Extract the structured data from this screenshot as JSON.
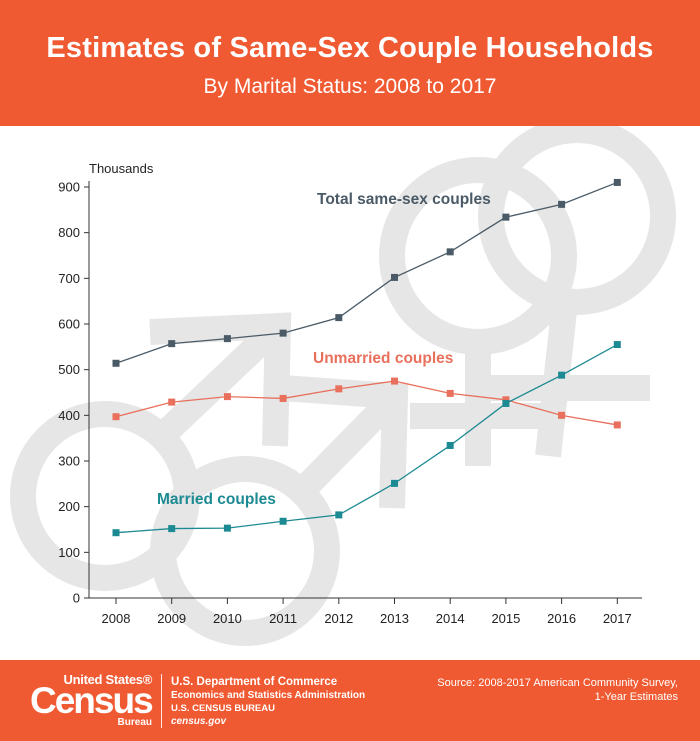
{
  "header": {
    "title": "Estimates of Same-Sex Couple Households",
    "subtitle": "By Marital Status: 2008 to 2017"
  },
  "chart_data": {
    "type": "line",
    "title": "Estimates of Same-Sex Couple Households",
    "subtitle": "By Marital Status: 2008 to 2017",
    "ylabel": "Thousands",
    "xlabel": "",
    "ylim": [
      0,
      900
    ],
    "yticks": [
      "0",
      "100",
      "200",
      "300",
      "400",
      "500",
      "600",
      "700",
      "800",
      "900"
    ],
    "x": [
      "2008",
      "2009",
      "2010",
      "2011",
      "2012",
      "2013",
      "2014",
      "2015",
      "2016",
      "2017"
    ],
    "grid": false,
    "legend": "inline labels",
    "series": [
      {
        "name": "Total same-sex couples",
        "color": "#4a5a66",
        "values": [
          514,
          557,
          568,
          580,
          614,
          702,
          758,
          834,
          862,
          910
        ]
      },
      {
        "name": "Unmarried couples",
        "color": "#e8705c",
        "values": [
          397,
          429,
          441,
          437,
          458,
          475,
          448,
          434,
          400,
          379
        ]
      },
      {
        "name": "Married couples",
        "color": "#1c8a92",
        "values": [
          143,
          152,
          153,
          168,
          182,
          251,
          334,
          426,
          488,
          555
        ]
      }
    ]
  },
  "footer": {
    "logo_line1": "United States®",
    "logo_line2": "Census",
    "logo_line3": "Bureau",
    "dept_line1": "U.S. Department of Commerce",
    "dept_line2": "Economics and Statistics Administration",
    "dept_line3": "U.S. CENSUS BUREAU",
    "dept_line4": "census.gov",
    "source_line1": "Source: 2008-2017 American Community Survey,",
    "source_line2": "1-Year Estimates"
  },
  "colors": {
    "brand": "#f05a32",
    "watermark": "#e6e6e6"
  }
}
